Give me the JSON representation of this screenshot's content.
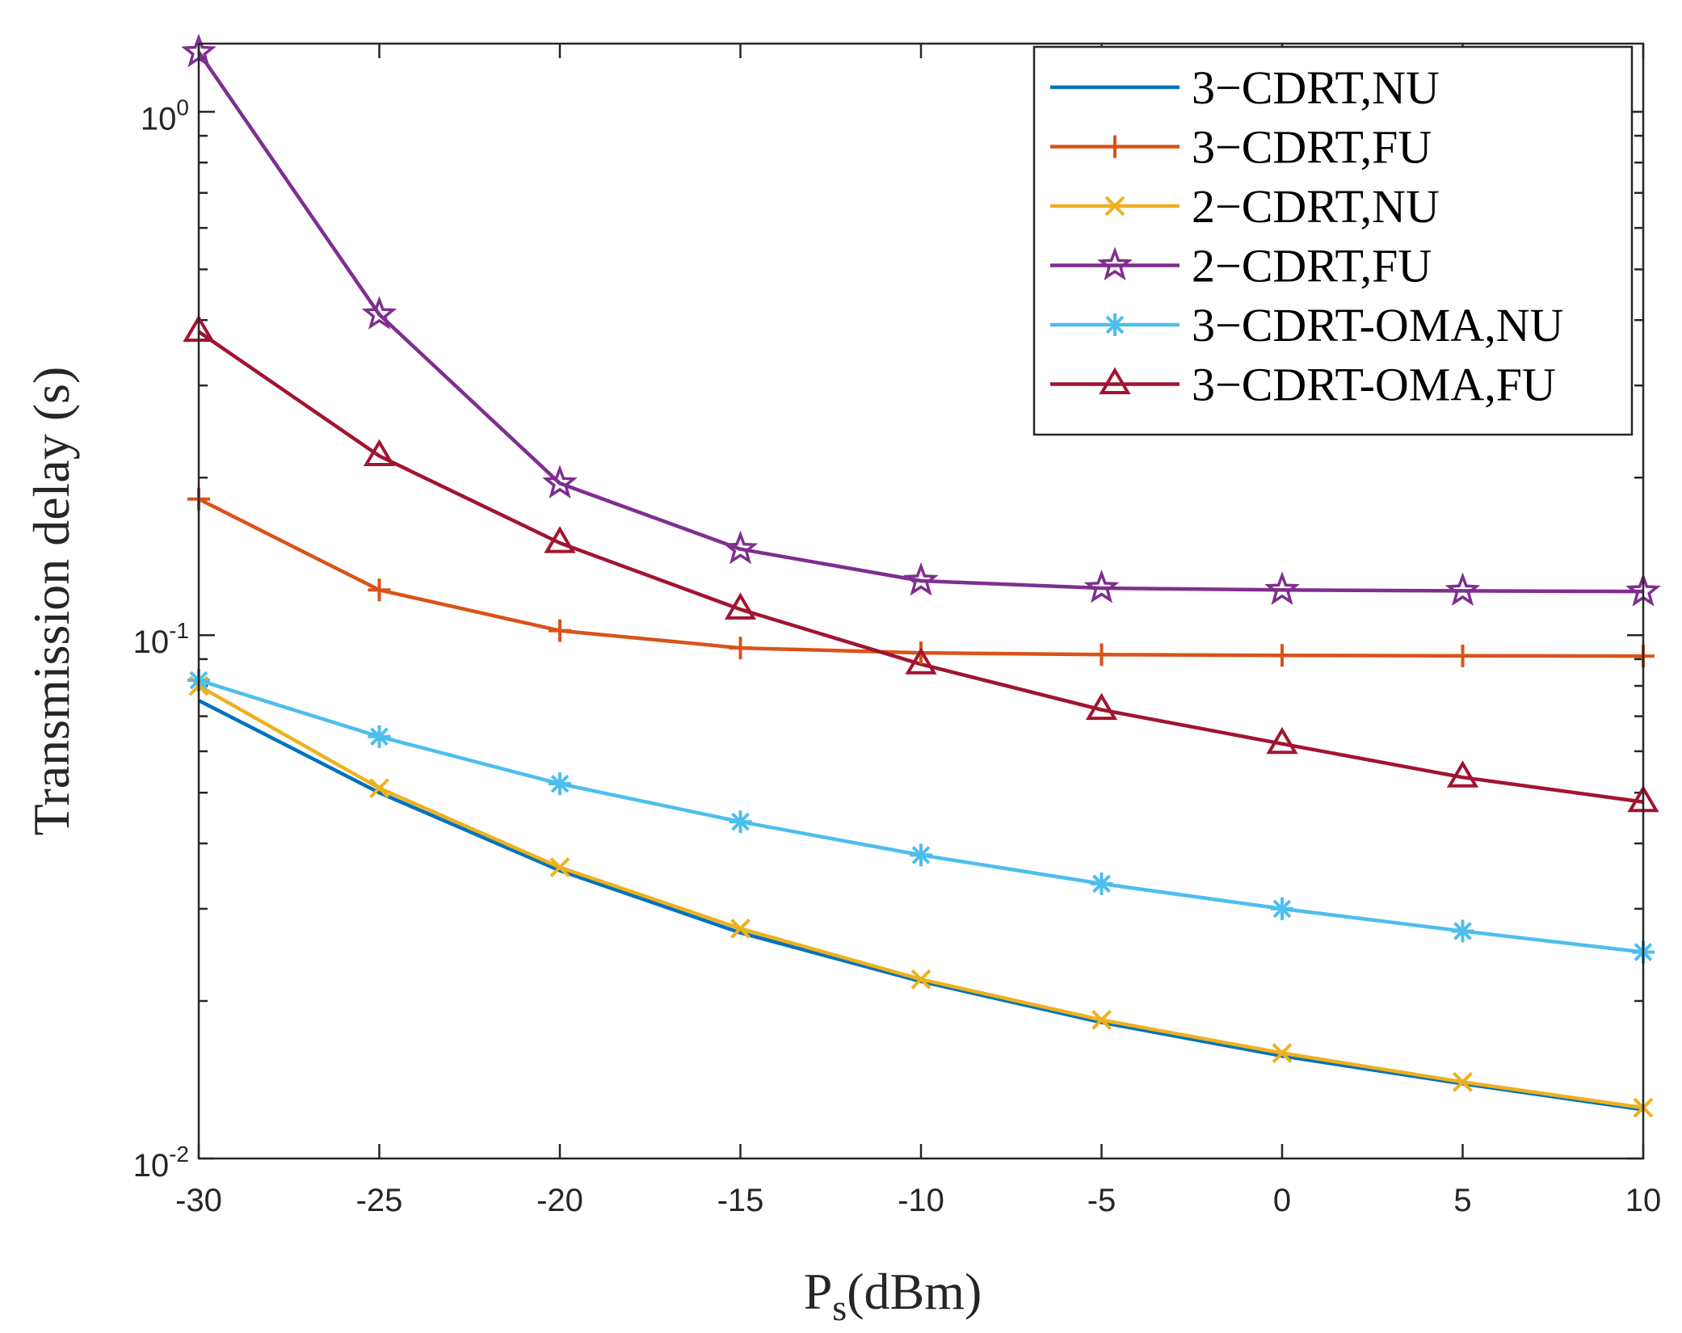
{
  "chart_data": {
    "type": "line",
    "title": "",
    "xlabel": "P",
    "xlabel_sub": "s",
    "xlabel_unit": "(dBm)",
    "ylabel": "Transmission delay (s)",
    "yscale": "log",
    "xlim": [
      -30,
      10
    ],
    "ylim": [
      0.01,
      1.35
    ],
    "x": [
      -30,
      -25,
      -20,
      -15,
      -10,
      -5,
      0,
      5,
      10
    ],
    "xtick_labels": [
      "-30",
      "-25",
      "-20",
      "-15",
      "-10",
      "-5",
      "0",
      "5",
      "10"
    ],
    "ytick_labels": [
      {
        "base": "10",
        "exp": "-2"
      },
      {
        "base": "10",
        "exp": "-1"
      },
      {
        "base": "10",
        "exp": "0"
      }
    ],
    "legend_position": "top-right",
    "series": [
      {
        "name": "3−CDRT,NU",
        "color": "#0072BD",
        "marker": "none",
        "values": [
          0.075,
          0.05,
          0.0355,
          0.027,
          0.0218,
          0.0182,
          0.0157,
          0.0139,
          0.0124
        ]
      },
      {
        "name": "3−CDRT,FU",
        "color": "#D95319",
        "marker": "plus",
        "values": [
          0.182,
          0.122,
          0.102,
          0.0945,
          0.0925,
          0.0918,
          0.0915,
          0.0913,
          0.0912
        ]
      },
      {
        "name": "2−CDRT,NU",
        "color": "#EDB120",
        "marker": "x",
        "values": [
          0.08,
          0.051,
          0.036,
          0.0275,
          0.022,
          0.0184,
          0.0159,
          0.014,
          0.0125
        ]
      },
      {
        "name": "2−CDRT,FU",
        "color": "#7E2F8E",
        "marker": "star",
        "values": [
          1.3,
          0.41,
          0.195,
          0.146,
          0.127,
          0.123,
          0.122,
          0.1215,
          0.1212
        ]
      },
      {
        "name": "3−CDRT-OMA,NU",
        "color": "#4DBEEE",
        "marker": "asterisk",
        "values": [
          0.082,
          0.064,
          0.052,
          0.044,
          0.038,
          0.0335,
          0.03,
          0.0272,
          0.0248
        ]
      },
      {
        "name": "3−CDRT-OMA,FU",
        "color": "#A2142F",
        "marker": "triangle",
        "values": [
          0.38,
          0.22,
          0.15,
          0.112,
          0.088,
          0.072,
          0.062,
          0.0535,
          0.048
        ]
      }
    ]
  }
}
